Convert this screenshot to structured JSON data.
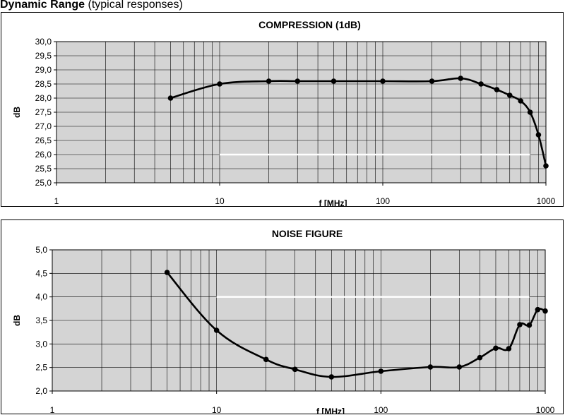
{
  "header": {
    "title_bold": "Dynamic Range",
    "title_normal": "(typical responses)"
  },
  "chart_data": [
    {
      "type": "line",
      "title": "COMPRESSION (1dB)",
      "xlabel": "f [MHz]",
      "ylabel": "dB",
      "xscale": "log",
      "xlim": [
        1,
        1000
      ],
      "ylim": [
        25.0,
        30.0
      ],
      "x_ticks": [
        "1",
        "10",
        "100",
        "1000"
      ],
      "y_ticks": [
        "25,0",
        "25,5",
        "26,0",
        "26,5",
        "27,0",
        "27,5",
        "28,0",
        "28,5",
        "29,0",
        "29,5",
        "30,0"
      ],
      "grid": true,
      "legend": "none",
      "plot_bg": "#d4d4d4",
      "line_color": "#000000",
      "series": [
        {
          "x": [
            5,
            10,
            20,
            30,
            50,
            100,
            200,
            300,
            400,
            500,
            600,
            700,
            800,
            900,
            1000
          ],
          "y": [
            28.0,
            28.5,
            28.6,
            28.6,
            28.6,
            28.6,
            28.6,
            28.7,
            28.5,
            28.3,
            28.1,
            27.9,
            27.5,
            26.7,
            25.6
          ]
        }
      ],
      "reference_line": {
        "x": [
          10,
          800
        ],
        "y": 26.0,
        "color": "#ffffff"
      }
    },
    {
      "type": "line",
      "title": "NOISE FIGURE",
      "xlabel": "f [MHz]",
      "ylabel": "dB",
      "xscale": "log",
      "xlim": [
        1,
        1000
      ],
      "ylim": [
        2.0,
        5.0
      ],
      "x_ticks": [
        "1",
        "10",
        "100",
        "1000"
      ],
      "y_ticks": [
        "2,0",
        "2,5",
        "3,0",
        "3,5",
        "4,0",
        "4,5",
        "5,0"
      ],
      "grid": true,
      "legend": "none",
      "plot_bg": "#d4d4d4",
      "line_color": "#000000",
      "series": [
        {
          "x": [
            5,
            10,
            20,
            30,
            50,
            100,
            200,
            300,
            400,
            500,
            600,
            700,
            800,
            900,
            1000
          ],
          "y": [
            4.52,
            3.29,
            2.67,
            2.46,
            2.3,
            2.42,
            2.51,
            2.51,
            2.71,
            2.91,
            2.9,
            3.41,
            3.4,
            3.73,
            3.7
          ]
        }
      ],
      "reference_line": {
        "x": [
          10,
          800
        ],
        "y": 4.0,
        "color": "#ffffff"
      }
    }
  ]
}
